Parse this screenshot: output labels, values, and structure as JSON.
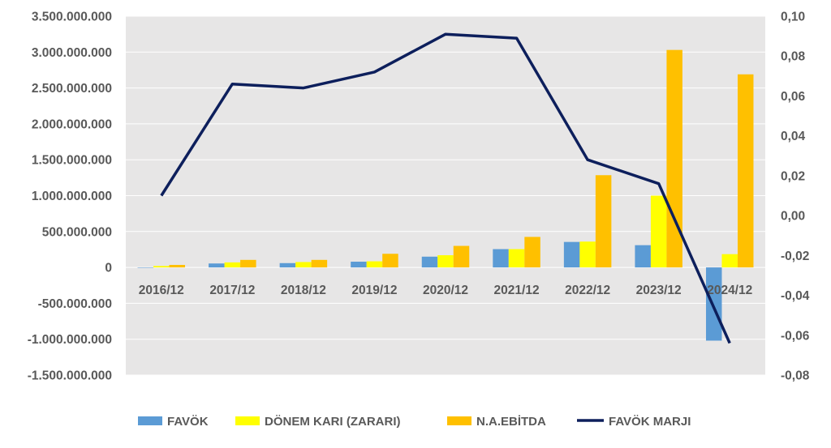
{
  "chart_data": {
    "type": "bar",
    "categories": [
      "2016/12",
      "2017/12",
      "2018/12",
      "2019/12",
      "2020/12",
      "2021/12",
      "2022/12",
      "2023/12",
      "2024/12"
    ],
    "series": [
      {
        "name": "FAVÖK",
        "type": "bar",
        "axis": "left",
        "color": "#5B9BD5",
        "values": [
          0,
          55000000,
          60000000,
          80000000,
          150000000,
          255000000,
          355000000,
          310000000,
          -1020000000
        ]
      },
      {
        "name": "DÖNEM KARI (ZARARI)",
        "type": "bar",
        "axis": "left",
        "color": "#FFFF00",
        "values": [
          20000000,
          70000000,
          75000000,
          85000000,
          170000000,
          255000000,
          360000000,
          1000000000,
          185000000
        ]
      },
      {
        "name": "N.A.EBİTDA",
        "type": "bar",
        "axis": "left",
        "color": "#FFC000",
        "values": [
          35000000,
          105000000,
          105000000,
          190000000,
          300000000,
          425000000,
          1285000000,
          3030000000,
          2690000000
        ]
      },
      {
        "name": "FAVÖK MARJI",
        "type": "line",
        "axis": "right",
        "color": "#0D1F5C",
        "values": [
          0.01,
          0.066,
          0.064,
          0.072,
          0.091,
          0.089,
          0.028,
          0.016,
          -0.064
        ]
      }
    ],
    "y_left": {
      "range": [
        -1500000000,
        3500000000
      ],
      "ticks": [
        3500000000,
        3000000000,
        2500000000,
        2000000000,
        1500000000,
        1000000000,
        500000000,
        0,
        -500000000,
        -1000000000,
        -1500000000
      ],
      "tick_labels": [
        "3.500.000.000",
        "3.000.000.000",
        "2.500.000.000",
        "2.000.000.000",
        "1.500.000.000",
        "1.000.000.000",
        "500.000.000",
        "0",
        "-500.000.000",
        "-1.000.000.000",
        "-1.500.000.000"
      ]
    },
    "y_right": {
      "range": [
        -0.08,
        0.1
      ],
      "ticks": [
        0.1,
        0.08,
        0.06,
        0.04,
        0.02,
        0,
        -0.02,
        -0.04,
        -0.06,
        -0.08
      ],
      "tick_labels": [
        "0,10",
        "0,08",
        "0,06",
        "0,04",
        "0,02",
        "0,00",
        "-0,02",
        "-0,04",
        "-0,06",
        "-0,08"
      ]
    },
    "grid": true,
    "legend_position": "bottom",
    "colors": {
      "plot_background": "#E7E6E6",
      "gridline": "#FFFFFF",
      "tick_text": "#595959"
    }
  }
}
